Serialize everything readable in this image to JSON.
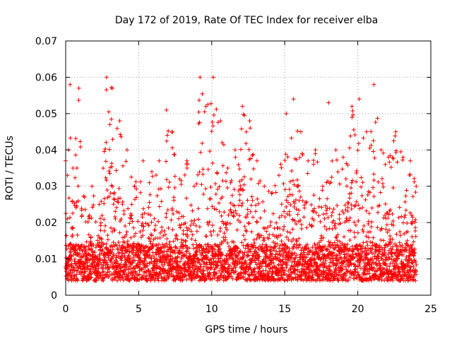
{
  "chart_data": {
    "type": "scatter",
    "title": "Day 172 of 2019, Rate Of TEC Index for receiver elba",
    "xlabel": "GPS time / hours",
    "ylabel": "ROTI / TECUs",
    "xlim": [
      0,
      25
    ],
    "ylim": [
      0,
      0.07
    ],
    "x_ticks": [
      "0",
      "5",
      "10",
      "15",
      "20",
      "25"
    ],
    "y_ticks": [
      "0",
      "0.01",
      "0.02",
      "0.03",
      "0.04",
      "0.05",
      "0.06",
      "0.07"
    ],
    "grid": true,
    "marker": "+",
    "color": "#ff0000",
    "x_data_range": [
      0,
      24
    ],
    "baseline_band": [
      0.004,
      0.014
    ],
    "envelope": [
      {
        "x": 0.0,
        "y": 0.037
      },
      {
        "x": 0.2,
        "y": 0.04
      },
      {
        "x": 0.3,
        "y": 0.058
      },
      {
        "x": 0.5,
        "y": 0.035
      },
      {
        "x": 0.9,
        "y": 0.057
      },
      {
        "x": 1.3,
        "y": 0.027
      },
      {
        "x": 1.8,
        "y": 0.03
      },
      {
        "x": 2.3,
        "y": 0.025
      },
      {
        "x": 2.8,
        "y": 0.06
      },
      {
        "x": 3.2,
        "y": 0.057
      },
      {
        "x": 3.7,
        "y": 0.048
      },
      {
        "x": 4.2,
        "y": 0.04
      },
      {
        "x": 4.7,
        "y": 0.03
      },
      {
        "x": 5.3,
        "y": 0.037
      },
      {
        "x": 5.9,
        "y": 0.034
      },
      {
        "x": 6.4,
        "y": 0.037
      },
      {
        "x": 6.9,
        "y": 0.051
      },
      {
        "x": 7.3,
        "y": 0.045
      },
      {
        "x": 7.8,
        "y": 0.032
      },
      {
        "x": 8.3,
        "y": 0.037
      },
      {
        "x": 8.8,
        "y": 0.03
      },
      {
        "x": 9.2,
        "y": 0.06
      },
      {
        "x": 9.6,
        "y": 0.052
      },
      {
        "x": 10.1,
        "y": 0.06
      },
      {
        "x": 10.6,
        "y": 0.048
      },
      {
        "x": 11.1,
        "y": 0.035
      },
      {
        "x": 11.6,
        "y": 0.04
      },
      {
        "x": 12.1,
        "y": 0.052
      },
      {
        "x": 12.6,
        "y": 0.048
      },
      {
        "x": 13.1,
        "y": 0.037
      },
      {
        "x": 13.6,
        "y": 0.03
      },
      {
        "x": 14.1,
        "y": 0.028
      },
      {
        "x": 14.6,
        "y": 0.033
      },
      {
        "x": 15.1,
        "y": 0.05
      },
      {
        "x": 15.6,
        "y": 0.054
      },
      {
        "x": 16.1,
        "y": 0.045
      },
      {
        "x": 16.6,
        "y": 0.037
      },
      {
        "x": 17.1,
        "y": 0.04
      },
      {
        "x": 17.6,
        "y": 0.03
      },
      {
        "x": 18.0,
        "y": 0.053
      },
      {
        "x": 18.5,
        "y": 0.04
      },
      {
        "x": 19.0,
        "y": 0.038
      },
      {
        "x": 19.6,
        "y": 0.052
      },
      {
        "x": 20.1,
        "y": 0.054
      },
      {
        "x": 20.6,
        "y": 0.045
      },
      {
        "x": 21.1,
        "y": 0.058
      },
      {
        "x": 21.6,
        "y": 0.04
      },
      {
        "x": 22.1,
        "y": 0.038
      },
      {
        "x": 22.6,
        "y": 0.045
      },
      {
        "x": 23.1,
        "y": 0.038
      },
      {
        "x": 23.6,
        "y": 0.037
      },
      {
        "x": 24.0,
        "y": 0.03
      }
    ]
  }
}
